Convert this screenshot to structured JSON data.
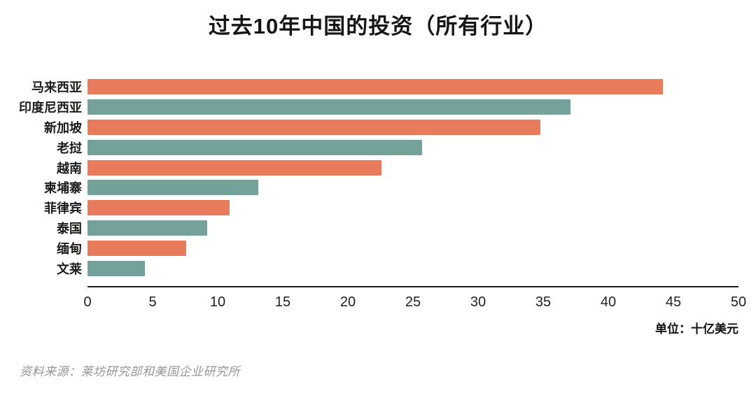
{
  "page": {
    "title": "过去10年中国的投资（所有行业）",
    "unit_label": "单位：十亿美元",
    "source": "资料来源：莱坊研究部和美国企业研究所"
  },
  "chart_data": {
    "type": "bar",
    "orientation": "horizontal",
    "title": "过去10年中国的投资（所有行业）",
    "categories": [
      "马来西亚",
      "印度尼西亚",
      "新加坡",
      "老挝",
      "越南",
      "柬埔寨",
      "菲律宾",
      "泰国",
      "缅甸",
      "文莱"
    ],
    "values": [
      44.2,
      37.1,
      34.8,
      25.7,
      22.6,
      13.1,
      10.9,
      9.2,
      7.6,
      4.4
    ],
    "xlabel": "单位：十亿美元",
    "ylabel": "",
    "xlim": [
      0,
      50
    ],
    "xticks": [
      0,
      5,
      10,
      15,
      20,
      25,
      30,
      35,
      40,
      45,
      50
    ],
    "grid": false,
    "legend_position": "none",
    "bar_palette": [
      "#E87B5B",
      "#72A29A"
    ],
    "color_pattern": "alternating",
    "axis_color": "#1f1f1f",
    "source": "资料来源：莱坊研究部和美国企业研究所"
  }
}
